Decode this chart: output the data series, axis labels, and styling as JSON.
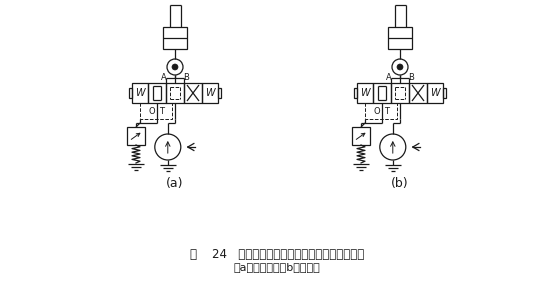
{
  "title_line1": "图    24   电磁换向阀与液控单向阀控制的换向回路",
  "title_line2": "（a）改进前；（b）改进后",
  "label_a": "(a)",
  "label_b": "(b)",
  "bg_color": "#ffffff",
  "line_color": "#1a1a1a",
  "fig_width": 5.54,
  "fig_height": 2.85,
  "dpi": 100
}
